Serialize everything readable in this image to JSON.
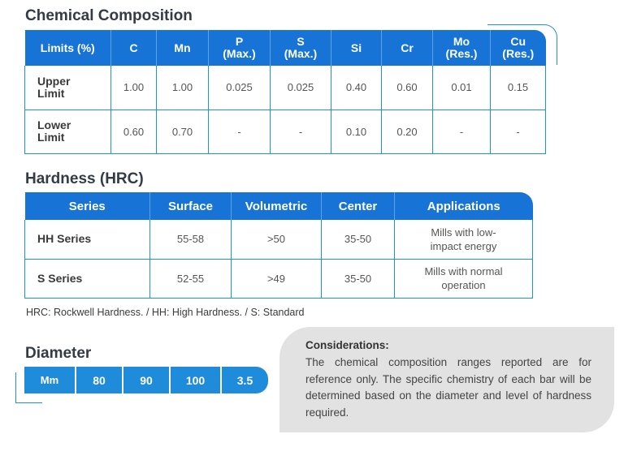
{
  "chemical": {
    "title": "Chemical Composition",
    "headers": [
      {
        "line1": "Limits (%)",
        "line2": ""
      },
      {
        "line1": "C",
        "line2": ""
      },
      {
        "line1": "Mn",
        "line2": ""
      },
      {
        "line1": "P",
        "line2": "(Max.)"
      },
      {
        "line1": "S",
        "line2": "(Max.)"
      },
      {
        "line1": "Si",
        "line2": ""
      },
      {
        "line1": "Cr",
        "line2": ""
      },
      {
        "line1": "Mo",
        "line2": "(Res.)"
      },
      {
        "line1": "Cu",
        "line2": "(Res.)"
      }
    ],
    "rows": [
      {
        "label1": "Upper",
        "label2": "Limit",
        "values": [
          "1.00",
          "1.00",
          "0.025",
          "0.025",
          "0.40",
          "0.60",
          "0.01",
          "0.15"
        ]
      },
      {
        "label1": "Lower",
        "label2": "Limit",
        "values": [
          "0.60",
          "0.70",
          "-",
          "-",
          "0.10",
          "0.20",
          "-",
          "-"
        ]
      }
    ]
  },
  "hardness": {
    "title": "Hardness (HRC)",
    "headers": [
      "Series",
      "Surface",
      "Volumetric",
      "Center",
      "Applications"
    ],
    "rows": [
      {
        "series": "HH Series",
        "surface": "55-58",
        "volumetric": ">50",
        "center": "35-50",
        "app1": "Mills with low-",
        "app2": "impact energy"
      },
      {
        "series": "S Series",
        "surface": "52-55",
        "volumetric": ">49",
        "center": "35-50",
        "app1": "Mills with normal",
        "app2": "operation"
      }
    ],
    "note": "HRC: Rockwell Hardness. / HH: High Hardness. / S: Standard"
  },
  "diameter": {
    "title": "Diameter",
    "unit": "Mm",
    "values": [
      "80",
      "90",
      "100",
      "3.5"
    ]
  },
  "considerations": {
    "title": "Considerations:",
    "text": "The chemical composition ranges reported are for reference only. The specific chemistry of each bar will be determined based on the diameter and level of hardness required."
  },
  "colors": {
    "header_blue": "#1774d6",
    "border_blue": "#1f93d8",
    "diameter_blue": "#1f8bdb",
    "note_box_gray": "#e2e2e2"
  }
}
